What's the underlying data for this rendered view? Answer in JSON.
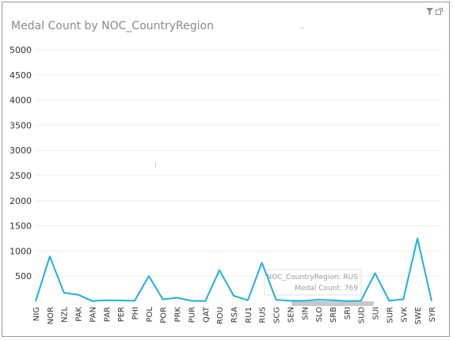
{
  "header": {
    "filter_icon": "funnel-icon",
    "expand_icon": "expand-icon"
  },
  "tooltip": {
    "line1": "NOC_CountryRegion: RUS",
    "line2": "Medal Count: 769"
  },
  "chart_data": {
    "type": "line",
    "title": "Medal Count by NOC_CountryRegion",
    "xlabel": "",
    "ylabel": "",
    "ylim": [
      0,
      5000
    ],
    "yticks": [
      500,
      1000,
      1500,
      2000,
      2500,
      3000,
      3500,
      4000,
      4500,
      5000
    ],
    "grid": true,
    "color": "#1ab2e8",
    "categories": [
      "NIG",
      "NOR",
      "NZL",
      "PAK",
      "PAN",
      "PAR",
      "PER",
      "PHI",
      "POL",
      "POR",
      "PRK",
      "PUR",
      "QAT",
      "ROU",
      "RSA",
      "RU1",
      "RUS",
      "SCG",
      "SEN",
      "SIN",
      "SLO",
      "SRB",
      "SRI",
      "SUD",
      "SUI",
      "SUR",
      "SVK",
      "SWE",
      "SYR"
    ],
    "values": [
      2,
      891,
      170,
      130,
      5,
      20,
      15,
      10,
      500,
      38,
      70,
      10,
      5,
      620,
      110,
      20,
      769,
      30,
      10,
      10,
      30,
      20,
      5,
      10,
      560,
      10,
      40,
      1250,
      5
    ]
  }
}
